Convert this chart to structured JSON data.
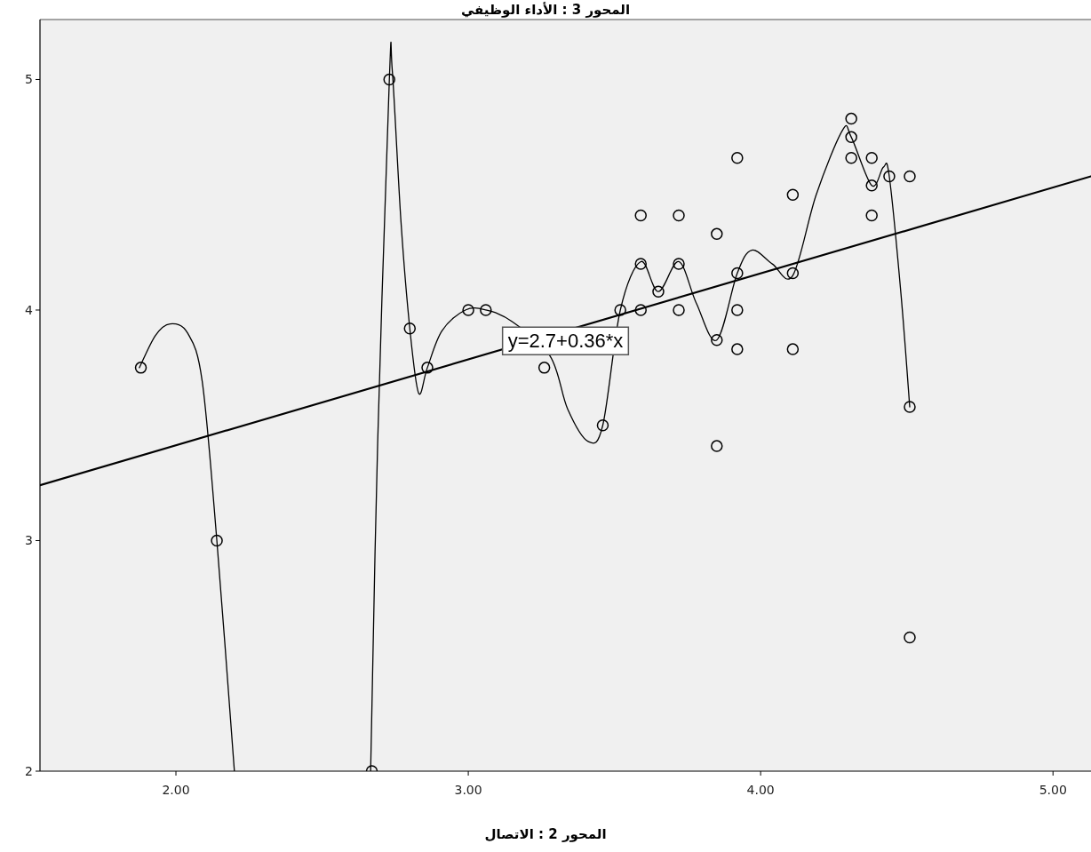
{
  "chart_data": {
    "type": "scatter",
    "ylabel": "المحور 3 : الأداء الوظيفي",
    "xlabel": "المحور 2 : الاتصال",
    "xlim": [
      1.535,
      5.13
    ],
    "ylim": [
      2,
      5.26
    ],
    "xticks": [
      {
        "value": 2,
        "label": "2.00"
      },
      {
        "value": 3,
        "label": "3.00"
      },
      {
        "value": 4,
        "label": "4.00"
      },
      {
        "value": 5,
        "label": "5.00"
      }
    ],
    "yticks": [
      2,
      3,
      4,
      5
    ],
    "grid": false,
    "annotations": [
      "y=2.7+0.36*x"
    ],
    "series": [
      {
        "type": "line",
        "color": "#000000",
        "marker": "none",
        "x": [
          1.535,
          5.13
        ],
        "values": [
          3.24,
          4.58
        ]
      },
      {
        "type": "line",
        "color": "#000000",
        "marker": "none",
        "x": [
          1.875,
          1.93,
          1.98,
          2.04,
          2.09,
          2.14,
          2.2
        ],
        "values": [
          3.75,
          3.89,
          3.94,
          3.9,
          3.69,
          3.0,
          2.0
        ]
      },
      {
        "type": "line",
        "color": "#000000",
        "marker": "none",
        "x": [
          2.666,
          2.69,
          2.73,
          2.74,
          2.77,
          2.8,
          2.83,
          2.86,
          2.91,
          2.99,
          3.06,
          3.15,
          3.28,
          3.34,
          3.41,
          3.46,
          3.52,
          3.59,
          3.65,
          3.72,
          3.78,
          3.85,
          3.92,
          3.97,
          4.04,
          4.11,
          4.19,
          4.28,
          4.31,
          4.38,
          4.42,
          4.44,
          4.48,
          4.51
        ],
        "values": [
          2.0,
          3.42,
          5.0,
          5.04,
          4.38,
          3.92,
          3.64,
          3.75,
          3.91,
          4.0,
          4.0,
          3.95,
          3.8,
          3.57,
          3.43,
          3.5,
          4.0,
          4.21,
          4.08,
          4.21,
          4.03,
          3.87,
          4.16,
          4.26,
          4.2,
          4.15,
          4.5,
          4.78,
          4.75,
          4.54,
          4.62,
          4.58,
          4.07,
          3.58
        ]
      },
      {
        "color": "#000000",
        "marker": "circle",
        "x": [
          1.88,
          2.14,
          2.67,
          2.73,
          2.8,
          2.86,
          3.0,
          3.06,
          3.26,
          3.46,
          3.52,
          3.59,
          3.59,
          3.59,
          3.65,
          3.72,
          3.72,
          3.72,
          3.85,
          3.85,
          3.85,
          3.92,
          3.92,
          3.92,
          3.92,
          4.11,
          4.11,
          4.11,
          4.31,
          4.31,
          4.31,
          4.38,
          4.38,
          4.38,
          4.44,
          4.51,
          4.51,
          4.51
        ],
        "values": [
          3.75,
          3.0,
          2.0,
          5.0,
          3.92,
          3.75,
          4.0,
          4.0,
          3.75,
          3.5,
          4.0,
          4.41,
          4.2,
          4.0,
          4.08,
          4.41,
          4.2,
          4.0,
          4.33,
          3.87,
          3.41,
          4.66,
          4.16,
          4.0,
          3.83,
          4.5,
          4.16,
          3.83,
          4.83,
          4.75,
          4.66,
          4.66,
          4.54,
          4.41,
          4.58,
          4.58,
          3.58,
          2.58
        ]
      }
    ]
  }
}
